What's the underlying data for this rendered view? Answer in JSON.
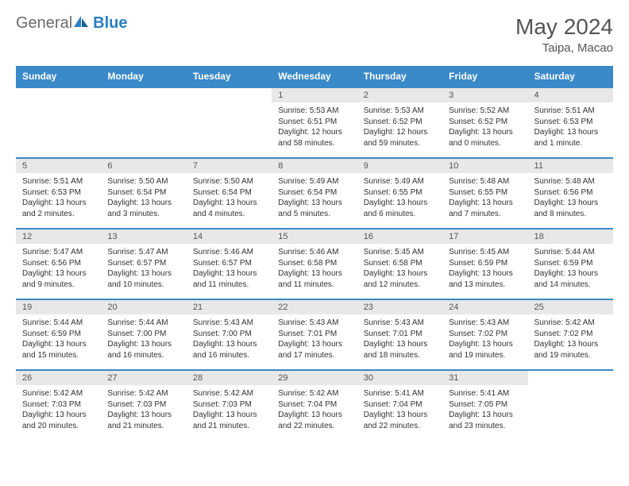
{
  "logo": {
    "general": "General",
    "blue": "Blue"
  },
  "title": "May 2024",
  "location": "Taipa, Macao",
  "colors": {
    "header_bg": "#3a89c9",
    "header_text": "#ffffff",
    "daynum_bg": "#e8e8e8",
    "border": "#3a89c9",
    "body_bg": "#ffffff",
    "text": "#333333",
    "logo_gray": "#6b6b6b",
    "logo_blue": "#2a7fc4"
  },
  "weekdays": [
    "Sunday",
    "Monday",
    "Tuesday",
    "Wednesday",
    "Thursday",
    "Friday",
    "Saturday"
  ],
  "weeks": [
    [
      {
        "n": "",
        "sr": "",
        "ss": "",
        "dl": ""
      },
      {
        "n": "",
        "sr": "",
        "ss": "",
        "dl": ""
      },
      {
        "n": "",
        "sr": "",
        "ss": "",
        "dl": ""
      },
      {
        "n": "1",
        "sr": "Sunrise: 5:53 AM",
        "ss": "Sunset: 6:51 PM",
        "dl": "Daylight: 12 hours and 58 minutes."
      },
      {
        "n": "2",
        "sr": "Sunrise: 5:53 AM",
        "ss": "Sunset: 6:52 PM",
        "dl": "Daylight: 12 hours and 59 minutes."
      },
      {
        "n": "3",
        "sr": "Sunrise: 5:52 AM",
        "ss": "Sunset: 6:52 PM",
        "dl": "Daylight: 13 hours and 0 minutes."
      },
      {
        "n": "4",
        "sr": "Sunrise: 5:51 AM",
        "ss": "Sunset: 6:53 PM",
        "dl": "Daylight: 13 hours and 1 minute."
      }
    ],
    [
      {
        "n": "5",
        "sr": "Sunrise: 5:51 AM",
        "ss": "Sunset: 6:53 PM",
        "dl": "Daylight: 13 hours and 2 minutes."
      },
      {
        "n": "6",
        "sr": "Sunrise: 5:50 AM",
        "ss": "Sunset: 6:54 PM",
        "dl": "Daylight: 13 hours and 3 minutes."
      },
      {
        "n": "7",
        "sr": "Sunrise: 5:50 AM",
        "ss": "Sunset: 6:54 PM",
        "dl": "Daylight: 13 hours and 4 minutes."
      },
      {
        "n": "8",
        "sr": "Sunrise: 5:49 AM",
        "ss": "Sunset: 6:54 PM",
        "dl": "Daylight: 13 hours and 5 minutes."
      },
      {
        "n": "9",
        "sr": "Sunrise: 5:49 AM",
        "ss": "Sunset: 6:55 PM",
        "dl": "Daylight: 13 hours and 6 minutes."
      },
      {
        "n": "10",
        "sr": "Sunrise: 5:48 AM",
        "ss": "Sunset: 6:55 PM",
        "dl": "Daylight: 13 hours and 7 minutes."
      },
      {
        "n": "11",
        "sr": "Sunrise: 5:48 AM",
        "ss": "Sunset: 6:56 PM",
        "dl": "Daylight: 13 hours and 8 minutes."
      }
    ],
    [
      {
        "n": "12",
        "sr": "Sunrise: 5:47 AM",
        "ss": "Sunset: 6:56 PM",
        "dl": "Daylight: 13 hours and 9 minutes."
      },
      {
        "n": "13",
        "sr": "Sunrise: 5:47 AM",
        "ss": "Sunset: 6:57 PM",
        "dl": "Daylight: 13 hours and 10 minutes."
      },
      {
        "n": "14",
        "sr": "Sunrise: 5:46 AM",
        "ss": "Sunset: 6:57 PM",
        "dl": "Daylight: 13 hours and 11 minutes."
      },
      {
        "n": "15",
        "sr": "Sunrise: 5:46 AM",
        "ss": "Sunset: 6:58 PM",
        "dl": "Daylight: 13 hours and 11 minutes."
      },
      {
        "n": "16",
        "sr": "Sunrise: 5:45 AM",
        "ss": "Sunset: 6:58 PM",
        "dl": "Daylight: 13 hours and 12 minutes."
      },
      {
        "n": "17",
        "sr": "Sunrise: 5:45 AM",
        "ss": "Sunset: 6:59 PM",
        "dl": "Daylight: 13 hours and 13 minutes."
      },
      {
        "n": "18",
        "sr": "Sunrise: 5:44 AM",
        "ss": "Sunset: 6:59 PM",
        "dl": "Daylight: 13 hours and 14 minutes."
      }
    ],
    [
      {
        "n": "19",
        "sr": "Sunrise: 5:44 AM",
        "ss": "Sunset: 6:59 PM",
        "dl": "Daylight: 13 hours and 15 minutes."
      },
      {
        "n": "20",
        "sr": "Sunrise: 5:44 AM",
        "ss": "Sunset: 7:00 PM",
        "dl": "Daylight: 13 hours and 16 minutes."
      },
      {
        "n": "21",
        "sr": "Sunrise: 5:43 AM",
        "ss": "Sunset: 7:00 PM",
        "dl": "Daylight: 13 hours and 16 minutes."
      },
      {
        "n": "22",
        "sr": "Sunrise: 5:43 AM",
        "ss": "Sunset: 7:01 PM",
        "dl": "Daylight: 13 hours and 17 minutes."
      },
      {
        "n": "23",
        "sr": "Sunrise: 5:43 AM",
        "ss": "Sunset: 7:01 PM",
        "dl": "Daylight: 13 hours and 18 minutes."
      },
      {
        "n": "24",
        "sr": "Sunrise: 5:43 AM",
        "ss": "Sunset: 7:02 PM",
        "dl": "Daylight: 13 hours and 19 minutes."
      },
      {
        "n": "25",
        "sr": "Sunrise: 5:42 AM",
        "ss": "Sunset: 7:02 PM",
        "dl": "Daylight: 13 hours and 19 minutes."
      }
    ],
    [
      {
        "n": "26",
        "sr": "Sunrise: 5:42 AM",
        "ss": "Sunset: 7:03 PM",
        "dl": "Daylight: 13 hours and 20 minutes."
      },
      {
        "n": "27",
        "sr": "Sunrise: 5:42 AM",
        "ss": "Sunset: 7:03 PM",
        "dl": "Daylight: 13 hours and 21 minutes."
      },
      {
        "n": "28",
        "sr": "Sunrise: 5:42 AM",
        "ss": "Sunset: 7:03 PM",
        "dl": "Daylight: 13 hours and 21 minutes."
      },
      {
        "n": "29",
        "sr": "Sunrise: 5:42 AM",
        "ss": "Sunset: 7:04 PM",
        "dl": "Daylight: 13 hours and 22 minutes."
      },
      {
        "n": "30",
        "sr": "Sunrise: 5:41 AM",
        "ss": "Sunset: 7:04 PM",
        "dl": "Daylight: 13 hours and 22 minutes."
      },
      {
        "n": "31",
        "sr": "Sunrise: 5:41 AM",
        "ss": "Sunset: 7:05 PM",
        "dl": "Daylight: 13 hours and 23 minutes."
      },
      {
        "n": "",
        "sr": "",
        "ss": "",
        "dl": ""
      }
    ]
  ]
}
